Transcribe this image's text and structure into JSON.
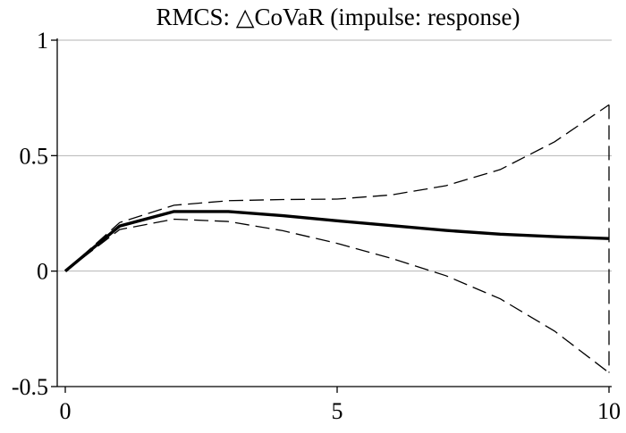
{
  "chart_data": {
    "type": "line",
    "title": "RMCS: △CoVaR (impulse: response)",
    "xlabel": "",
    "ylabel": "",
    "xlim": [
      0,
      10
    ],
    "ylim": [
      -0.5,
      1
    ],
    "x_ticks": [
      0,
      5,
      10
    ],
    "y_ticks": [
      -0.5,
      0,
      0.5,
      1
    ],
    "x_tick_labels": [
      "0",
      "5",
      "10"
    ],
    "y_tick_labels": [
      "-0.5",
      "0",
      "0.5",
      "1"
    ],
    "grid": "horizontal",
    "legend": "none",
    "x": [
      0,
      1,
      2,
      3,
      4,
      5,
      6,
      7,
      8,
      9,
      10
    ],
    "series": [
      {
        "role": "irf",
        "style": "solid",
        "values": [
          0,
          0.195,
          0.258,
          0.258,
          0.24,
          0.218,
          0.197,
          0.176,
          0.16,
          0.149,
          0.141
        ]
      },
      {
        "role": "upper-band",
        "style": "dashed",
        "values": [
          0,
          0.21,
          0.285,
          0.305,
          0.31,
          0.312,
          0.33,
          0.37,
          0.44,
          0.56,
          0.72
        ]
      },
      {
        "role": "lower-band",
        "style": "dashed",
        "values": [
          0,
          0.18,
          0.225,
          0.215,
          0.175,
          0.12,
          0.055,
          -0.02,
          -0.12,
          -0.26,
          -0.44
        ]
      }
    ]
  }
}
